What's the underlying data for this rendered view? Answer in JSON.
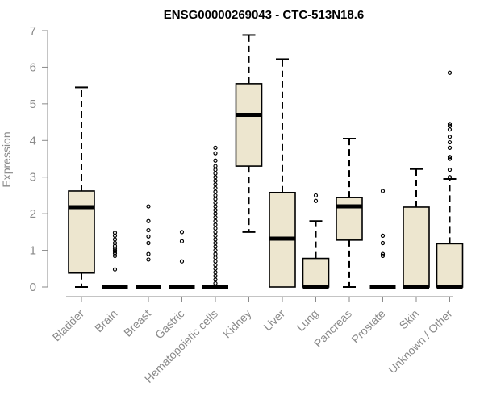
{
  "chart_data": {
    "type": "boxplot",
    "title": "ENSG00000269043 - CTC-513N18.6",
    "xlabel": "",
    "ylabel": "Expression",
    "ylim": [
      0,
      7
    ],
    "yticks": [
      0,
      1,
      2,
      3,
      4,
      5,
      6,
      7
    ],
    "box_fill": "#ede6cf",
    "categories": [
      "Bladder",
      "Brain",
      "Breast",
      "Gastric",
      "Hematopoietic cells",
      "Kidney",
      "Liver",
      "Lung",
      "Pancreas",
      "Prostate",
      "Skin",
      "Unknown / Other"
    ],
    "boxes": [
      {
        "min": 0.0,
        "q1": 0.38,
        "median": 2.18,
        "q3": 2.62,
        "max": 5.45,
        "outliers": []
      },
      {
        "min": 0.0,
        "q1": 0.0,
        "median": 0.0,
        "q3": 0.0,
        "max": 0.0,
        "outliers": [
          0.48,
          0.85,
          0.92,
          0.97,
          1.0,
          1.05,
          1.12,
          1.2,
          1.3,
          1.4,
          1.48
        ]
      },
      {
        "min": 0.0,
        "q1": 0.0,
        "median": 0.0,
        "q3": 0.0,
        "max": 0.0,
        "outliers": [
          0.75,
          0.9,
          1.2,
          1.38,
          1.55,
          1.8,
          2.2
        ]
      },
      {
        "min": 0.0,
        "q1": 0.0,
        "median": 0.0,
        "q3": 0.0,
        "max": 0.0,
        "outliers": [
          0.7,
          1.25,
          1.5
        ]
      },
      {
        "min": 0.0,
        "q1": 0.0,
        "median": 0.0,
        "q3": 0.0,
        "max": 0.0,
        "outliers": [
          0.1,
          0.2,
          0.3,
          0.4,
          0.5,
          0.6,
          0.7,
          0.8,
          0.9,
          1.0,
          1.1,
          1.2,
          1.3,
          1.4,
          1.5,
          1.6,
          1.7,
          1.8,
          1.9,
          2.0,
          2.1,
          2.2,
          2.3,
          2.4,
          2.5,
          2.6,
          2.7,
          2.8,
          2.9,
          3.0,
          3.1,
          3.2,
          3.3,
          3.45,
          3.65,
          3.8
        ]
      },
      {
        "min": 1.5,
        "q1": 3.3,
        "median": 4.7,
        "q3": 5.55,
        "max": 6.88,
        "outliers": []
      },
      {
        "min": 0.0,
        "q1": 0.0,
        "median": 1.32,
        "q3": 2.58,
        "max": 6.22,
        "outliers": []
      },
      {
        "min": 0.0,
        "q1": 0.0,
        "median": 0.0,
        "q3": 0.78,
        "max": 1.8,
        "outliers": [
          2.35,
          2.5
        ]
      },
      {
        "min": 0.0,
        "q1": 1.28,
        "median": 2.2,
        "q3": 2.44,
        "max": 4.05,
        "outliers": []
      },
      {
        "min": 0.0,
        "q1": 0.0,
        "median": 0.0,
        "q3": 0.0,
        "max": 0.0,
        "outliers": [
          0.85,
          0.9,
          1.2,
          1.4,
          2.62
        ]
      },
      {
        "min": 0.0,
        "q1": 0.0,
        "median": 0.0,
        "q3": 2.18,
        "max": 3.22,
        "outliers": []
      },
      {
        "min": 0.0,
        "q1": 0.0,
        "median": 0.0,
        "q3": 1.18,
        "max": 2.95,
        "outliers": [
          3.0,
          3.2,
          3.5,
          3.55,
          3.8,
          3.95,
          4.1,
          4.3,
          4.4,
          4.45,
          5.85
        ]
      }
    ]
  }
}
